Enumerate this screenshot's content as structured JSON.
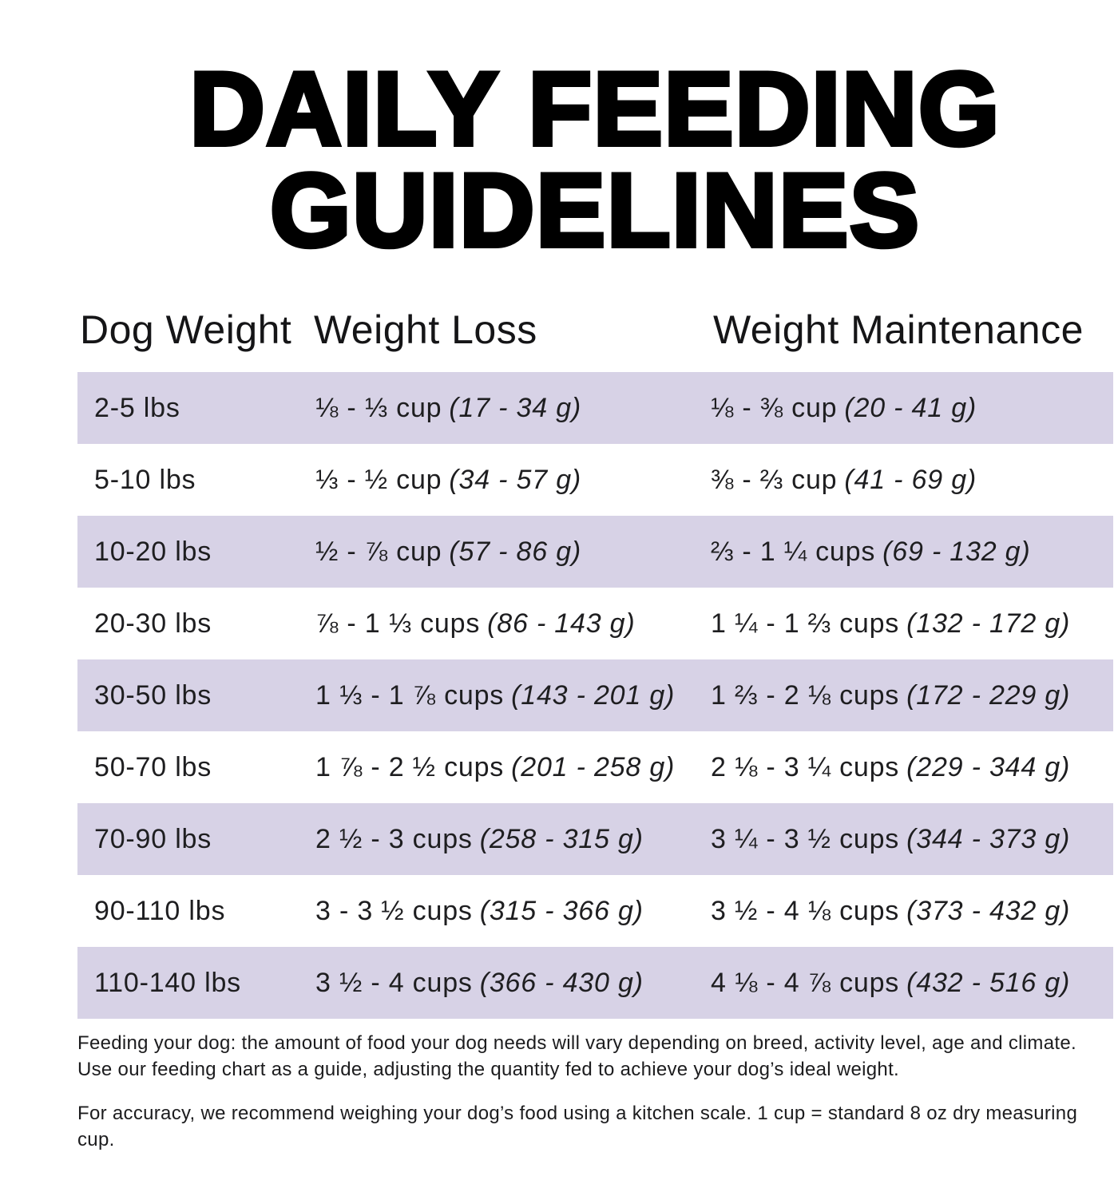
{
  "title": {
    "line1": "DAILY FEEDING",
    "line2": "GUIDELINES"
  },
  "table": {
    "columns": [
      "Dog Weight",
      "Weight Loss",
      "Weight Maintenance"
    ],
    "rows": [
      {
        "weight": "2-5 lbs",
        "loss_cups": "⅛ - ⅓ cup",
        "loss_grams": "(17 - 34 g)",
        "maint_cups": "⅛ - ⅜ cup",
        "maint_grams": "(20 - 41 g)"
      },
      {
        "weight": "5-10 lbs",
        "loss_cups": "⅓ - ½ cup",
        "loss_grams": "(34 - 57 g)",
        "maint_cups": "⅜ - ⅔ cup",
        "maint_grams": "(41 - 69 g)"
      },
      {
        "weight": "10-20 lbs",
        "loss_cups": "½ - ⅞ cup",
        "loss_grams": "(57 - 86 g)",
        "maint_cups": "⅔ - 1 ¼ cups",
        "maint_grams": "(69 - 132 g)"
      },
      {
        "weight": "20-30 lbs",
        "loss_cups": "⅞ - 1 ⅓ cups",
        "loss_grams": "(86 - 143 g)",
        "maint_cups": "1 ¼ - 1 ⅔ cups",
        "maint_grams": "(132 - 172 g)"
      },
      {
        "weight": "30-50 lbs",
        "loss_cups": "1 ⅓ - 1 ⅞ cups",
        "loss_grams": "(143 - 201 g)",
        "maint_cups": "1 ⅔ - 2 ⅛ cups",
        "maint_grams": "(172 - 229 g)"
      },
      {
        "weight": "50-70 lbs",
        "loss_cups": "1 ⅞ - 2 ½ cups",
        "loss_grams": "(201 - 258 g)",
        "maint_cups": "2 ⅛ - 3 ¼ cups",
        "maint_grams": "(229 - 344 g)"
      },
      {
        "weight": "70-90 lbs",
        "loss_cups": "2 ½ - 3 cups",
        "loss_grams": "(258 - 315 g)",
        "maint_cups": "3 ¼ - 3 ½ cups",
        "maint_grams": "(344 - 373 g)"
      },
      {
        "weight": "90-110 lbs",
        "loss_cups": "3 - 3 ½ cups",
        "loss_grams": "(315 - 366 g)",
        "maint_cups": "3 ½ - 4 ⅛ cups",
        "maint_grams": "(373 - 432 g)"
      },
      {
        "weight": "110-140 lbs",
        "loss_cups": "3 ½ - 4 cups",
        "loss_grams": "(366 - 430 g)",
        "maint_cups": "4 ⅛ - 4 ⅞ cups",
        "maint_grams": "(432 - 516 g)"
      }
    ]
  },
  "notes": {
    "para1": "Feeding your dog: the amount of food your dog needs will vary depending on breed, activity level, age and climate. Use our feeding chart as a guide, adjusting the quantity fed to achieve your dog’s ideal weight.",
    "para2": "For accuracy, we recommend weighing your dog’s food using a kitchen scale. 1 cup = standard 8 oz dry measuring cup."
  },
  "colors": {
    "row_stripe": "#d7d2e6",
    "background": "#ffffff",
    "title_text": "#000000",
    "body_text": "#1d1d1f"
  }
}
